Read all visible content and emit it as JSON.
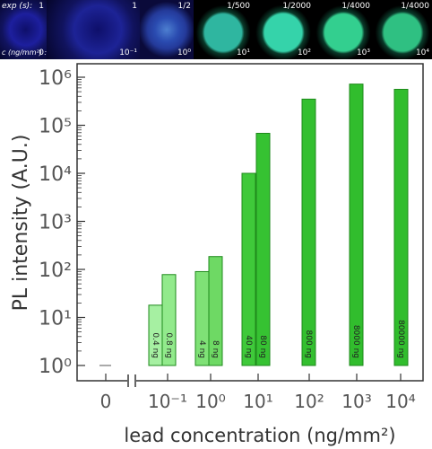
{
  "image_strip": {
    "exp_label": "exp (s):",
    "c_label": "c (ng/mm²) :",
    "panels": [
      {
        "exposure": "1",
        "concentration": "0",
        "color": "#1d1f9e"
      },
      {
        "exposure": "1",
        "concentration": "10⁻¹",
        "color": "#1d2396"
      },
      {
        "exposure": "1/2",
        "concentration": "10⁰",
        "color": "#243a9a"
      },
      {
        "exposure": "1/500",
        "concentration": "10¹",
        "color": "#2fb6a0"
      },
      {
        "exposure": "1/2000",
        "concentration": "10²",
        "color": "#35d3aa"
      },
      {
        "exposure": "1/4000",
        "concentration": "10³",
        "color": "#33cf8f"
      },
      {
        "exposure": "1/4000",
        "concentration": "10⁴",
        "color": "#2fc082"
      }
    ]
  },
  "chart_data": {
    "type": "bar",
    "title": "",
    "xlabel": "lead concentration (ng/mm²)",
    "ylabel": "PL intensity (A.U.)",
    "yscale": "log",
    "ylim": [
      0.5,
      2000000
    ],
    "y_ticks": [
      "10⁰",
      "10¹",
      "10²",
      "10³",
      "10⁴",
      "10⁵",
      "10⁶"
    ],
    "x_ticks": [
      "0",
      "10⁻¹",
      "10⁰",
      "10¹",
      "10²",
      "10³",
      "10⁴"
    ],
    "bars": [
      {
        "group": "10⁻¹",
        "label": "0.4 ng",
        "value": 18,
        "color": "#a6f0a2"
      },
      {
        "group": "10⁻¹",
        "label": "0.8 ng",
        "value": 78,
        "color": "#92ea8c"
      },
      {
        "group": "10⁰",
        "label": "4 ng",
        "value": 90,
        "color": "#7fe176"
      },
      {
        "group": "10⁰",
        "label": "8 ng",
        "value": 185,
        "color": "#6ed964"
      },
      {
        "group": "10¹",
        "label": "40 ng",
        "value": 10000,
        "color": "#3fc93a"
      },
      {
        "group": "10¹",
        "label": "80 ng",
        "value": 68000,
        "color": "#36c232"
      },
      {
        "group": "10²",
        "label": "800 ng",
        "value": 350000,
        "color": "#33bf2f"
      },
      {
        "group": "10³",
        "label": "8000 ng",
        "value": 720000,
        "color": "#31bd2d"
      },
      {
        "group": "10⁴",
        "label": "80000 ng",
        "value": 560000,
        "color": "#31bd2d"
      }
    ]
  }
}
